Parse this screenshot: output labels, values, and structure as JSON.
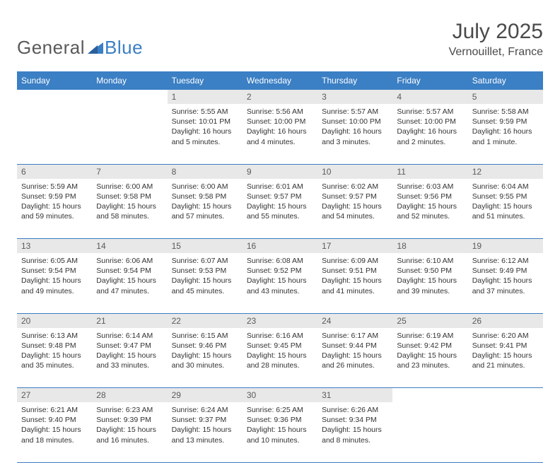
{
  "brand": {
    "part1": "General",
    "part2": "Blue"
  },
  "title": "July 2025",
  "location": "Vernouillet, France",
  "colors": {
    "header_bg": "#3b7fc4",
    "header_text": "#ffffff",
    "daynum_bg": "#e8e8e8",
    "daynum_text": "#5a5a5a",
    "line": "#3b7fc4",
    "body_text": "#333333"
  },
  "weekdays": [
    "Sunday",
    "Monday",
    "Tuesday",
    "Wednesday",
    "Thursday",
    "Friday",
    "Saturday"
  ],
  "weeks": [
    [
      null,
      null,
      {
        "n": "1",
        "sr": "Sunrise: 5:55 AM",
        "ss": "Sunset: 10:01 PM",
        "d1": "Daylight: 16 hours",
        "d2": "and 5 minutes."
      },
      {
        "n": "2",
        "sr": "Sunrise: 5:56 AM",
        "ss": "Sunset: 10:00 PM",
        "d1": "Daylight: 16 hours",
        "d2": "and 4 minutes."
      },
      {
        "n": "3",
        "sr": "Sunrise: 5:57 AM",
        "ss": "Sunset: 10:00 PM",
        "d1": "Daylight: 16 hours",
        "d2": "and 3 minutes."
      },
      {
        "n": "4",
        "sr": "Sunrise: 5:57 AM",
        "ss": "Sunset: 10:00 PM",
        "d1": "Daylight: 16 hours",
        "d2": "and 2 minutes."
      },
      {
        "n": "5",
        "sr": "Sunrise: 5:58 AM",
        "ss": "Sunset: 9:59 PM",
        "d1": "Daylight: 16 hours",
        "d2": "and 1 minute."
      }
    ],
    [
      {
        "n": "6",
        "sr": "Sunrise: 5:59 AM",
        "ss": "Sunset: 9:59 PM",
        "d1": "Daylight: 15 hours",
        "d2": "and 59 minutes."
      },
      {
        "n": "7",
        "sr": "Sunrise: 6:00 AM",
        "ss": "Sunset: 9:58 PM",
        "d1": "Daylight: 15 hours",
        "d2": "and 58 minutes."
      },
      {
        "n": "8",
        "sr": "Sunrise: 6:00 AM",
        "ss": "Sunset: 9:58 PM",
        "d1": "Daylight: 15 hours",
        "d2": "and 57 minutes."
      },
      {
        "n": "9",
        "sr": "Sunrise: 6:01 AM",
        "ss": "Sunset: 9:57 PM",
        "d1": "Daylight: 15 hours",
        "d2": "and 55 minutes."
      },
      {
        "n": "10",
        "sr": "Sunrise: 6:02 AM",
        "ss": "Sunset: 9:57 PM",
        "d1": "Daylight: 15 hours",
        "d2": "and 54 minutes."
      },
      {
        "n": "11",
        "sr": "Sunrise: 6:03 AM",
        "ss": "Sunset: 9:56 PM",
        "d1": "Daylight: 15 hours",
        "d2": "and 52 minutes."
      },
      {
        "n": "12",
        "sr": "Sunrise: 6:04 AM",
        "ss": "Sunset: 9:55 PM",
        "d1": "Daylight: 15 hours",
        "d2": "and 51 minutes."
      }
    ],
    [
      {
        "n": "13",
        "sr": "Sunrise: 6:05 AM",
        "ss": "Sunset: 9:54 PM",
        "d1": "Daylight: 15 hours",
        "d2": "and 49 minutes."
      },
      {
        "n": "14",
        "sr": "Sunrise: 6:06 AM",
        "ss": "Sunset: 9:54 PM",
        "d1": "Daylight: 15 hours",
        "d2": "and 47 minutes."
      },
      {
        "n": "15",
        "sr": "Sunrise: 6:07 AM",
        "ss": "Sunset: 9:53 PM",
        "d1": "Daylight: 15 hours",
        "d2": "and 45 minutes."
      },
      {
        "n": "16",
        "sr": "Sunrise: 6:08 AM",
        "ss": "Sunset: 9:52 PM",
        "d1": "Daylight: 15 hours",
        "d2": "and 43 minutes."
      },
      {
        "n": "17",
        "sr": "Sunrise: 6:09 AM",
        "ss": "Sunset: 9:51 PM",
        "d1": "Daylight: 15 hours",
        "d2": "and 41 minutes."
      },
      {
        "n": "18",
        "sr": "Sunrise: 6:10 AM",
        "ss": "Sunset: 9:50 PM",
        "d1": "Daylight: 15 hours",
        "d2": "and 39 minutes."
      },
      {
        "n": "19",
        "sr": "Sunrise: 6:12 AM",
        "ss": "Sunset: 9:49 PM",
        "d1": "Daylight: 15 hours",
        "d2": "and 37 minutes."
      }
    ],
    [
      {
        "n": "20",
        "sr": "Sunrise: 6:13 AM",
        "ss": "Sunset: 9:48 PM",
        "d1": "Daylight: 15 hours",
        "d2": "and 35 minutes."
      },
      {
        "n": "21",
        "sr": "Sunrise: 6:14 AM",
        "ss": "Sunset: 9:47 PM",
        "d1": "Daylight: 15 hours",
        "d2": "and 33 minutes."
      },
      {
        "n": "22",
        "sr": "Sunrise: 6:15 AM",
        "ss": "Sunset: 9:46 PM",
        "d1": "Daylight: 15 hours",
        "d2": "and 30 minutes."
      },
      {
        "n": "23",
        "sr": "Sunrise: 6:16 AM",
        "ss": "Sunset: 9:45 PM",
        "d1": "Daylight: 15 hours",
        "d2": "and 28 minutes."
      },
      {
        "n": "24",
        "sr": "Sunrise: 6:17 AM",
        "ss": "Sunset: 9:44 PM",
        "d1": "Daylight: 15 hours",
        "d2": "and 26 minutes."
      },
      {
        "n": "25",
        "sr": "Sunrise: 6:19 AM",
        "ss": "Sunset: 9:42 PM",
        "d1": "Daylight: 15 hours",
        "d2": "and 23 minutes."
      },
      {
        "n": "26",
        "sr": "Sunrise: 6:20 AM",
        "ss": "Sunset: 9:41 PM",
        "d1": "Daylight: 15 hours",
        "d2": "and 21 minutes."
      }
    ],
    [
      {
        "n": "27",
        "sr": "Sunrise: 6:21 AM",
        "ss": "Sunset: 9:40 PM",
        "d1": "Daylight: 15 hours",
        "d2": "and 18 minutes."
      },
      {
        "n": "28",
        "sr": "Sunrise: 6:23 AM",
        "ss": "Sunset: 9:39 PM",
        "d1": "Daylight: 15 hours",
        "d2": "and 16 minutes."
      },
      {
        "n": "29",
        "sr": "Sunrise: 6:24 AM",
        "ss": "Sunset: 9:37 PM",
        "d1": "Daylight: 15 hours",
        "d2": "and 13 minutes."
      },
      {
        "n": "30",
        "sr": "Sunrise: 6:25 AM",
        "ss": "Sunset: 9:36 PM",
        "d1": "Daylight: 15 hours",
        "d2": "and 10 minutes."
      },
      {
        "n": "31",
        "sr": "Sunrise: 6:26 AM",
        "ss": "Sunset: 9:34 PM",
        "d1": "Daylight: 15 hours",
        "d2": "and 8 minutes."
      },
      null,
      null
    ]
  ]
}
